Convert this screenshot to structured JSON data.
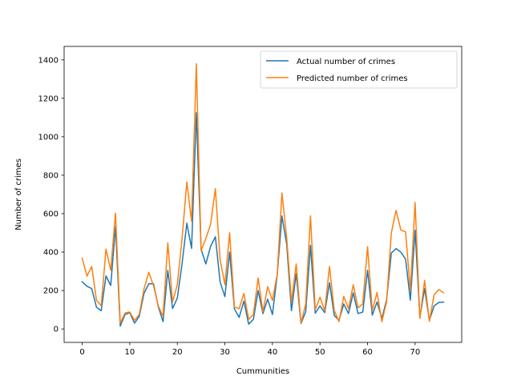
{
  "chart_data": {
    "type": "line",
    "title": "",
    "xlabel": "Cummunities",
    "ylabel": "Number of crimes",
    "xlim": [
      -3.8,
      79.8
    ],
    "ylim": [
      -70,
      1470
    ],
    "xticks": [
      0,
      10,
      20,
      30,
      40,
      50,
      60,
      70
    ],
    "yticks": [
      0,
      200,
      400,
      600,
      800,
      1000,
      1200,
      1400
    ],
    "grid": false,
    "legend_position": "upper-right",
    "series": [
      {
        "name": "Actual number of crimes",
        "color": "#1f77b4",
        "values": [
          245,
          222,
          210,
          113,
          95,
          276,
          226,
          532,
          15,
          75,
          85,
          30,
          65,
          185,
          235,
          235,
          116,
          38,
          305,
          106,
          160,
          340,
          550,
          419,
          1125,
          415,
          338,
          430,
          480,
          245,
          168,
          400,
          105,
          60,
          145,
          25,
          50,
          200,
          80,
          155,
          75,
          280,
          588,
          440,
          95,
          288,
          28,
          90,
          435,
          82,
          120,
          85,
          240,
          70,
          45,
          130,
          80,
          188,
          80,
          88,
          305,
          72,
          140,
          55,
          150,
          395,
          418,
          400,
          363,
          150,
          513,
          60,
          210,
          45,
          120,
          138,
          140
        ]
      },
      {
        "name": "Predicted number of crimes",
        "color": "#ff7f0e",
        "values": [
          368,
          275,
          325,
          150,
          120,
          415,
          305,
          603,
          30,
          83,
          88,
          45,
          75,
          208,
          295,
          225,
          120,
          65,
          448,
          140,
          230,
          470,
          765,
          560,
          1380,
          408,
          470,
          545,
          730,
          360,
          230,
          500,
          115,
          105,
          185,
          50,
          75,
          265,
          90,
          220,
          148,
          283,
          708,
          475,
          140,
          338,
          30,
          130,
          588,
          100,
          165,
          95,
          325,
          95,
          38,
          170,
          105,
          230,
          110,
          130,
          428,
          95,
          190,
          38,
          140,
          500,
          617,
          515,
          505,
          200,
          658,
          55,
          253,
          40,
          178,
          205,
          188
        ]
      }
    ]
  }
}
